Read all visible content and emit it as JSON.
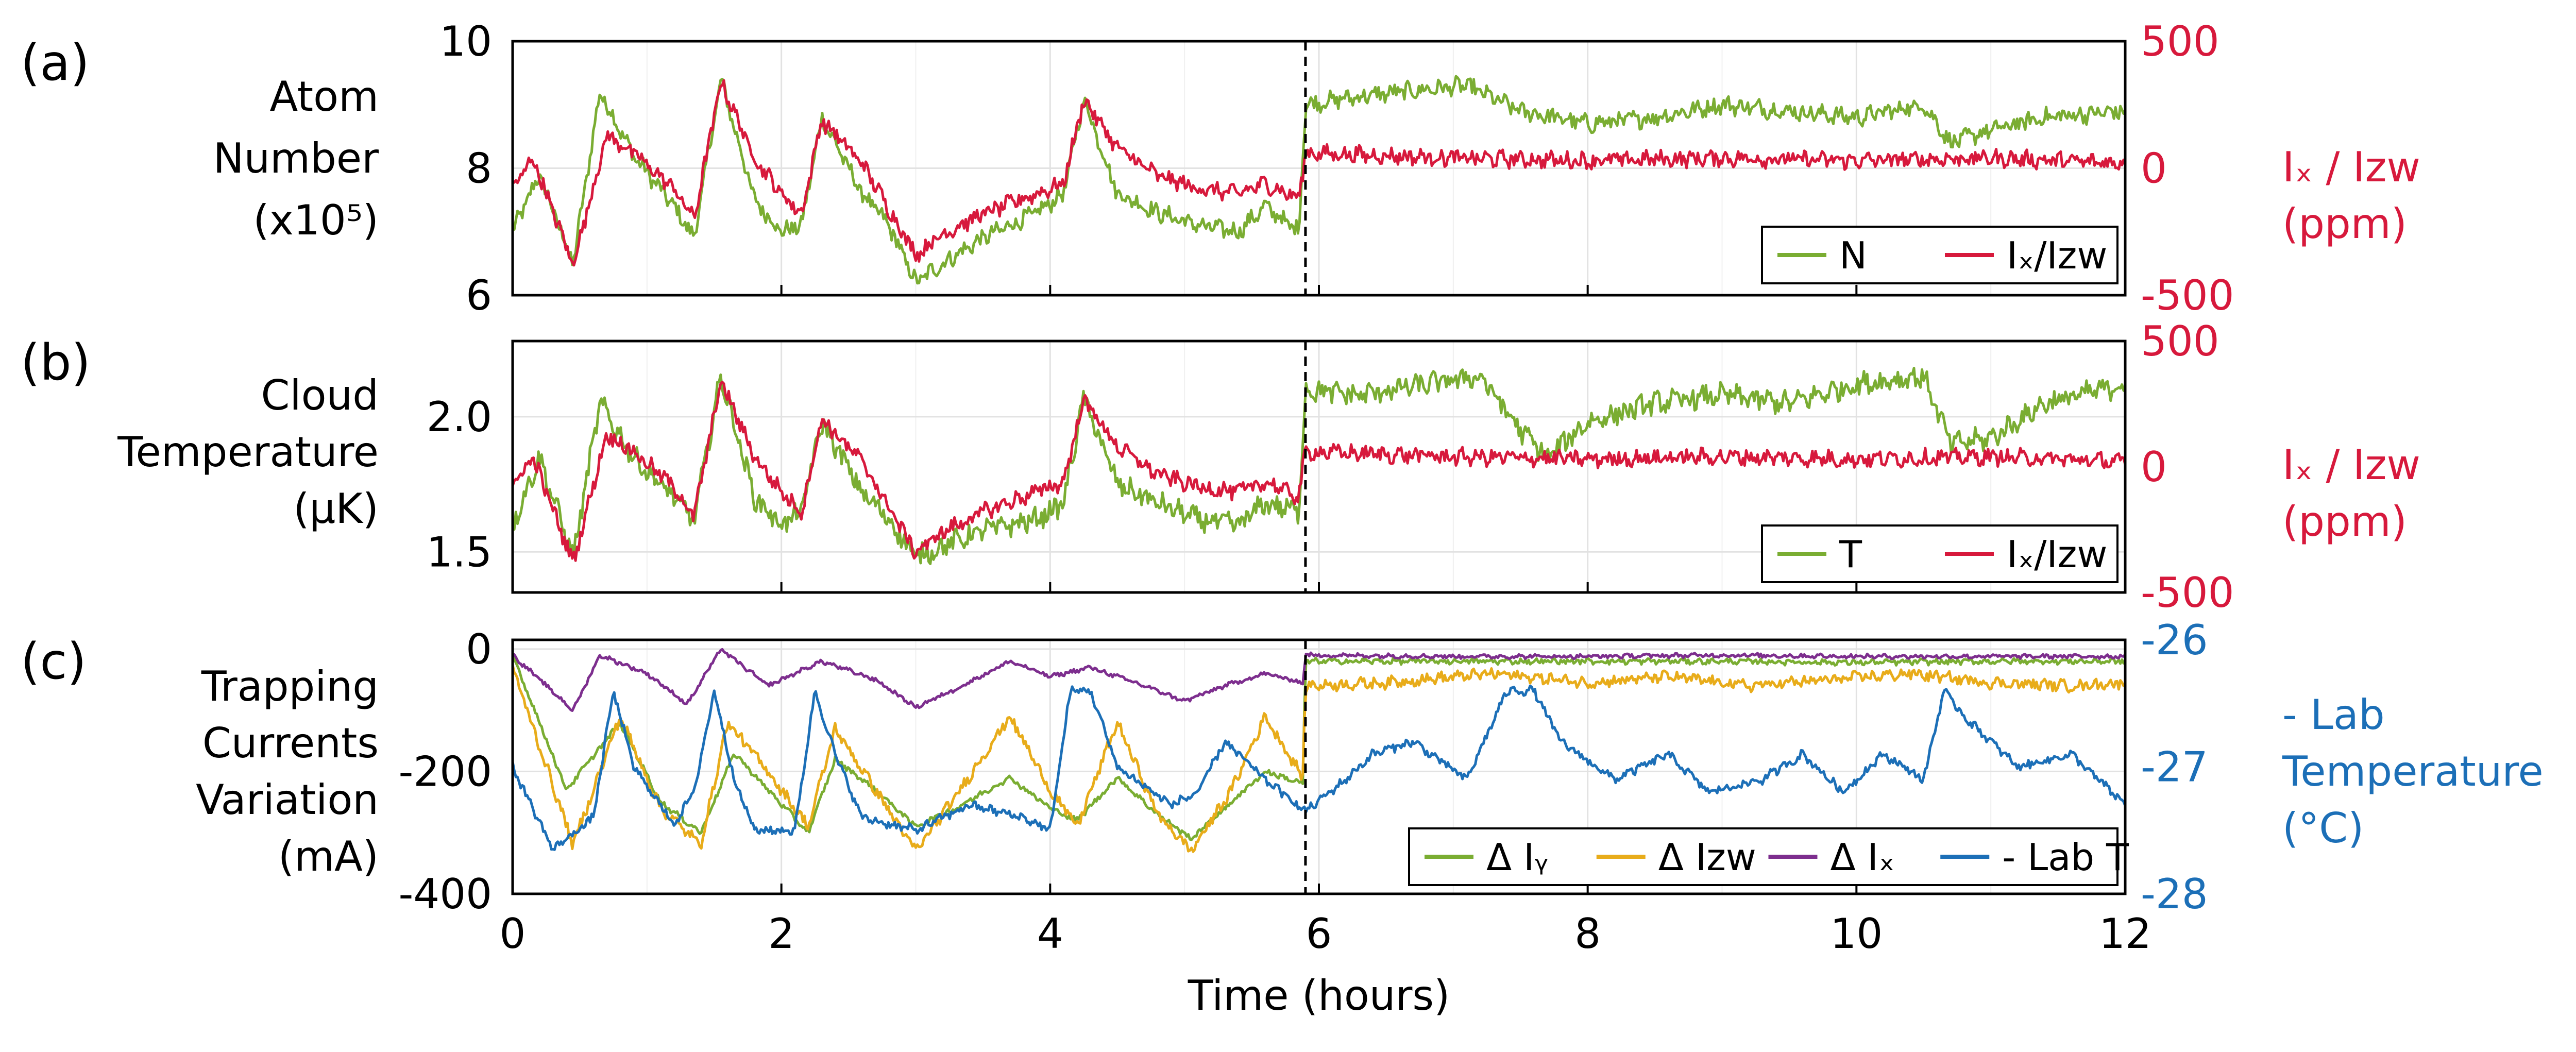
{
  "chart_data": [
    {
      "panel_label": "(a)",
      "type": "line",
      "ylabel_lines": [
        "Atom",
        "Number",
        "(x10⁵)"
      ],
      "right_label_lines": [
        "Iₓ / Iᴢᴡ",
        "(ppm)"
      ],
      "ylim": [
        6,
        10
      ],
      "yticks": [
        "6",
        "8",
        "10"
      ],
      "y2lim": [
        -500,
        500
      ],
      "y2ticks": [
        "-500",
        "0",
        "500"
      ],
      "legend": [
        {
          "label": "N",
          "color": "#7aad32"
        },
        {
          "label": "Iₓ/Iᴢᴡ",
          "color": "#d7193c"
        }
      ],
      "series": [
        {
          "name": "N",
          "axis": "left",
          "color": "#7aad32",
          "x": [
            0,
            0.2,
            0.45,
            0.65,
            0.9,
            1.2,
            1.35,
            1.55,
            1.8,
            2.0,
            2.15,
            2.3,
            2.6,
            2.8,
            3.0,
            3.2,
            3.5,
            3.9,
            4.1,
            4.25,
            4.5,
            4.8,
            5.1,
            5.4,
            5.6,
            5.85,
            5.9,
            6.2,
            6.6,
            7.1,
            7.5,
            8.0,
            8.5,
            9.0,
            9.5,
            10.0,
            10.5,
            10.7,
            11.0,
            11.4,
            12.0
          ],
          "y": [
            7.0,
            7.9,
            6.5,
            9.2,
            8.2,
            7.4,
            6.9,
            9.4,
            7.5,
            7.0,
            7.1,
            8.8,
            7.6,
            7.1,
            6.2,
            6.5,
            6.9,
            7.3,
            7.6,
            9.1,
            7.6,
            7.3,
            7.1,
            7.0,
            7.4,
            7.0,
            9.0,
            9.1,
            9.2,
            9.3,
            8.9,
            8.7,
            8.8,
            9.0,
            8.9,
            8.8,
            9.0,
            8.4,
            8.6,
            8.8,
            8.9
          ],
          "noise": 0.12
        },
        {
          "name": "Iₓ/Iᴢᴡ",
          "axis": "right",
          "color": "#d7193c",
          "x": [
            0,
            0.15,
            0.45,
            0.7,
            0.9,
            1.2,
            1.35,
            1.55,
            1.8,
            2.0,
            2.15,
            2.3,
            2.6,
            2.8,
            3.0,
            3.2,
            3.5,
            3.9,
            4.1,
            4.25,
            4.5,
            4.8,
            5.1,
            5.4,
            5.6,
            5.85,
            5.9,
            7.0,
            8.0,
            9.0,
            10.0,
            11.0,
            12.0
          ],
          "y": [
            -80,
            40,
            -380,
            130,
            60,
            -80,
            -200,
            340,
            40,
            -100,
            -180,
            190,
            20,
            -160,
            -340,
            -260,
            -180,
            -100,
            -60,
            270,
            80,
            -30,
            -80,
            -100,
            -60,
            -120,
            60,
            40,
            30,
            40,
            30,
            40,
            20
          ],
          "noise": 28
        }
      ]
    },
    {
      "panel_label": "(b)",
      "type": "line",
      "ylabel_lines": [
        "Cloud",
        "Temperature",
        "(μK)"
      ],
      "right_label_lines": [
        "Iₓ / Iᴢᴡ",
        "(ppm)"
      ],
      "ylim": [
        1.35,
        2.28
      ],
      "yticks": [
        "1.5",
        "2.0"
      ],
      "y2lim": [
        -500,
        500
      ],
      "y2ticks": [
        "-500",
        "0",
        "500"
      ],
      "legend": [
        {
          "label": "T",
          "color": "#7aad32"
        },
        {
          "label": "Iₓ/Iᴢᴡ",
          "color": "#d7193c"
        }
      ],
      "series": [
        {
          "name": "T",
          "axis": "left",
          "color": "#7aad32",
          "x": [
            0,
            0.2,
            0.45,
            0.65,
            0.9,
            1.2,
            1.35,
            1.55,
            1.8,
            2.0,
            2.15,
            2.3,
            2.6,
            2.8,
            3.0,
            3.2,
            3.5,
            3.9,
            4.1,
            4.25,
            4.5,
            4.8,
            5.1,
            5.4,
            5.6,
            5.85,
            5.9,
            6.3,
            6.8,
            7.2,
            7.5,
            7.7,
            8.0,
            8.5,
            9.0,
            9.5,
            10.0,
            10.5,
            10.7,
            11.0,
            11.4,
            12.0
          ],
          "y": [
            1.6,
            1.85,
            1.48,
            2.05,
            1.85,
            1.7,
            1.62,
            2.15,
            1.7,
            1.6,
            1.65,
            1.98,
            1.72,
            1.62,
            1.48,
            1.52,
            1.58,
            1.62,
            1.68,
            2.07,
            1.75,
            1.68,
            1.62,
            1.6,
            1.68,
            1.65,
            2.1,
            2.08,
            2.12,
            2.15,
            1.95,
            1.85,
            1.98,
            2.05,
            2.08,
            2.05,
            2.12,
            2.15,
            1.9,
            1.92,
            2.05,
            2.12
          ],
          "noise": 0.035
        },
        {
          "name": "Iₓ/Iᴢᴡ",
          "axis": "right",
          "color": "#d7193c",
          "x": [
            0,
            0.15,
            0.45,
            0.7,
            0.9,
            1.2,
            1.35,
            1.55,
            1.8,
            2.0,
            2.15,
            2.3,
            2.6,
            2.8,
            3.0,
            3.2,
            3.5,
            3.9,
            4.1,
            4.25,
            4.5,
            4.8,
            5.1,
            5.4,
            5.6,
            5.85,
            5.9,
            7.0,
            8.0,
            9.0,
            10.0,
            11.0,
            12.0
          ],
          "y": [
            -80,
            40,
            -380,
            130,
            60,
            -80,
            -200,
            340,
            40,
            -100,
            -180,
            190,
            20,
            -160,
            -340,
            -260,
            -180,
            -100,
            -60,
            270,
            80,
            -30,
            -80,
            -100,
            -60,
            -120,
            60,
            40,
            30,
            40,
            30,
            40,
            20
          ],
          "noise": 28
        }
      ]
    },
    {
      "panel_label": "(c)",
      "type": "line",
      "ylabel_lines": [
        "Trapping",
        "Currents",
        "Variation",
        "(mA)"
      ],
      "right_label_lines": [
        "- Lab",
        "Temperature",
        "(°C)"
      ],
      "ylim": [
        -400,
        15
      ],
      "yticks": [
        "-400",
        "-200",
        "0"
      ],
      "y2lim": [
        -28,
        -26
      ],
      "y2ticks": [
        "-28",
        "-27",
        "-26"
      ],
      "xlim": [
        0,
        12
      ],
      "xticks": [
        "0",
        "2",
        "4",
        "6",
        "8",
        "10",
        "12"
      ],
      "xlabel": "Time (hours)",
      "legend": [
        {
          "label": "Δ Iᵧ",
          "color": "#7aad32"
        },
        {
          "label": "Δ Iᴢᴡ",
          "color": "#e8ac1a"
        },
        {
          "label": "Δ Iₓ",
          "color": "#7d2e8e"
        },
        {
          "label": "- Lab T",
          "color": "#1c6fb7"
        }
      ],
      "series": [
        {
          "name": "Δ Iᵧ",
          "axis": "left",
          "color": "#7aad32",
          "x": [
            0,
            0.4,
            0.8,
            1.1,
            1.4,
            1.65,
            1.9,
            2.2,
            2.4,
            2.7,
            3.0,
            3.3,
            3.7,
            4.0,
            4.2,
            4.5,
            4.8,
            5.05,
            5.3,
            5.6,
            5.88,
            5.9,
            7.0,
            8.0,
            9.0,
            10.0,
            11.0,
            12.0
          ],
          "y": [
            -10,
            -230,
            -120,
            -250,
            -300,
            -170,
            -230,
            -300,
            -180,
            -230,
            -290,
            -260,
            -210,
            -260,
            -280,
            -210,
            -270,
            -310,
            -260,
            -200,
            -220,
            -20,
            -20,
            -20,
            -20,
            -22,
            -20,
            -20
          ],
          "noise": 4
        },
        {
          "name": "Δ Iᴢᴡ",
          "axis": "left",
          "color": "#e8ac1a",
          "x": [
            0,
            0.45,
            0.8,
            1.1,
            1.4,
            1.6,
            1.9,
            2.2,
            2.4,
            2.7,
            3.0,
            3.3,
            3.7,
            4.0,
            4.2,
            4.5,
            4.8,
            5.05,
            5.35,
            5.6,
            5.88,
            5.9,
            6.5,
            7.3,
            8.0,
            8.6,
            9.2,
            9.8,
            10.4,
            11.0,
            11.6,
            12.0
          ],
          "y": [
            -30,
            -320,
            -110,
            -260,
            -320,
            -120,
            -200,
            -290,
            -130,
            -230,
            -330,
            -240,
            -110,
            -230,
            -290,
            -120,
            -270,
            -330,
            -230,
            -110,
            -210,
            -60,
            -55,
            -40,
            -55,
            -45,
            -60,
            -50,
            -40,
            -55,
            -60,
            -55
          ],
          "noise": 8
        },
        {
          "name": "Δ Iₓ",
          "axis": "left",
          "color": "#7d2e8e",
          "x": [
            0,
            0.45,
            0.65,
            1.0,
            1.3,
            1.55,
            1.9,
            2.3,
            2.7,
            3.0,
            3.3,
            3.7,
            4.0,
            4.3,
            4.7,
            5.0,
            5.3,
            5.6,
            5.88,
            5.9,
            7.0,
            8.0,
            9.0,
            10.0,
            11.0,
            12.0
          ],
          "y": [
            -10,
            -100,
            -10,
            -40,
            -90,
            0,
            -60,
            -20,
            -50,
            -95,
            -65,
            -20,
            -45,
            -30,
            -60,
            -85,
            -60,
            -40,
            -55,
            -10,
            -12,
            -12,
            -10,
            -12,
            -12,
            -12
          ],
          "noise": 3
        },
        {
          "name": "- Lab T",
          "axis": "right",
          "color": "#1c6fb7",
          "x": [
            0,
            0.3,
            0.6,
            0.75,
            0.9,
            1.2,
            1.35,
            1.5,
            1.65,
            1.8,
            2.1,
            2.25,
            2.4,
            2.6,
            3.0,
            3.4,
            3.8,
            4.0,
            4.15,
            4.3,
            4.5,
            4.9,
            5.1,
            5.3,
            5.6,
            5.9,
            6.2,
            6.4,
            6.7,
            7.1,
            7.4,
            7.6,
            7.8,
            8.2,
            8.6,
            8.9,
            9.3,
            9.6,
            9.9,
            10.2,
            10.5,
            10.65,
            10.8,
            11.2,
            11.6,
            12.0
          ],
          "y": [
            -27.0,
            -27.65,
            -27.4,
            -26.4,
            -27.0,
            -27.45,
            -27.2,
            -26.4,
            -27.1,
            -27.5,
            -27.5,
            -26.4,
            -26.9,
            -27.4,
            -27.5,
            -27.3,
            -27.4,
            -27.5,
            -26.4,
            -26.4,
            -27.0,
            -27.3,
            -27.2,
            -26.8,
            -27.1,
            -27.35,
            -27.1,
            -26.9,
            -26.8,
            -27.1,
            -26.4,
            -26.4,
            -26.8,
            -27.1,
            -26.9,
            -27.2,
            -27.1,
            -26.9,
            -27.2,
            -26.9,
            -27.1,
            -26.4,
            -26.6,
            -27.0,
            -26.9,
            -27.3
          ],
          "noise": 0.03
        }
      ]
    }
  ]
}
